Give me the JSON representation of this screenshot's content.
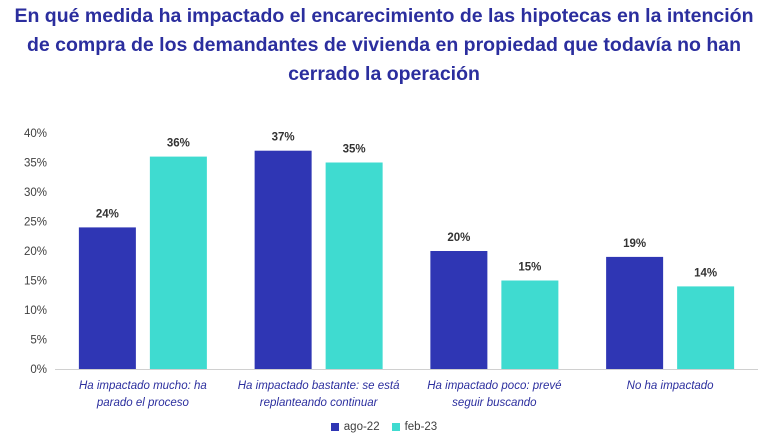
{
  "title": {
    "line1": "En qué medida ha impactado el encarecimiento de las hipotecas en la intención",
    "line2": "de compra de los demandantes de vivienda en propiedad que todavía no han",
    "line3": "cerrado la operación"
  },
  "colors": {
    "series_1": "#2F36B4",
    "series_2": "#3FDBD0",
    "title": "#2B2E9E"
  },
  "chart_data": {
    "type": "bar",
    "title": "En qué medida ha impactado el encarecimiento de las hipotecas en la intención de compra de los demandantes de vivienda en propiedad que todavía no han cerrado la operación",
    "categories": [
      [
        "Ha impactado mucho: ha",
        "parado el proceso"
      ],
      [
        "Ha impactado bastante: se está",
        "replanteando continuar"
      ],
      [
        "Ha impactado poco: prevé",
        "seguir buscando"
      ],
      [
        "No ha impactado"
      ]
    ],
    "series": [
      {
        "name": "ago-22",
        "values": [
          24,
          37,
          20,
          19
        ],
        "labels": [
          "24%",
          "37%",
          "20%",
          "19%"
        ]
      },
      {
        "name": "feb-23",
        "values": [
          36,
          35,
          15,
          14
        ],
        "labels": [
          "36%",
          "35%",
          "15%",
          "14%"
        ]
      }
    ],
    "ylim": [
      0,
      40
    ],
    "yticks": [
      0,
      5,
      10,
      15,
      20,
      25,
      30,
      35,
      40
    ],
    "ytick_labels": [
      "0%",
      "5%",
      "10%",
      "15%",
      "20%",
      "25%",
      "30%",
      "35%",
      "40%"
    ],
    "xlabel": "",
    "ylabel": "",
    "legend_position": "bottom"
  }
}
